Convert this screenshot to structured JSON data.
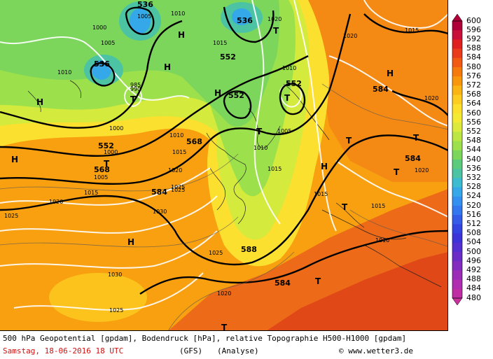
{
  "map": {
    "contour_labels_gpdam": [
      "536",
      "536",
      "536",
      "552",
      "552",
      "552",
      "552",
      "568",
      "568",
      "584",
      "584",
      "584",
      "584",
      "588"
    ],
    "pressure_labels_hpa": [
      "1005",
      "1010",
      "1000",
      "1005",
      "1010",
      "1015",
      "1020",
      "985",
      "990",
      "1000",
      "1010",
      "1015",
      "1020",
      "1005",
      "1010",
      "1000",
      "1005",
      "1015",
      "1015",
      "1020",
      "1025",
      "1030",
      "1020",
      "1030",
      "1025",
      "1025",
      "1020",
      "1015",
      "1015",
      "1010",
      "1020",
      "1025",
      "1010",
      "1015",
      "1020",
      "1025"
    ],
    "pressure_markers": [
      "H",
      "H",
      "H",
      "H",
      "H",
      "H",
      "H",
      "H",
      "T",
      "T",
      "T",
      "T",
      "T",
      "T",
      "T",
      "T",
      "T",
      "T",
      "T"
    ]
  },
  "legend": {
    "values": [
      "600",
      "596",
      "592",
      "588",
      "584",
      "580",
      "576",
      "572",
      "568",
      "564",
      "560",
      "556",
      "552",
      "548",
      "544",
      "540",
      "536",
      "532",
      "528",
      "524",
      "520",
      "516",
      "512",
      "508",
      "504",
      "500",
      "496",
      "492",
      "488",
      "484",
      "480"
    ],
    "colors": [
      "#b0003a",
      "#c8103a",
      "#e02020",
      "#e83c1c",
      "#f05a12",
      "#f47a0c",
      "#f8960c",
      "#fab414",
      "#fccc20",
      "#fce02c",
      "#f4ea34",
      "#dcea3c",
      "#bce644",
      "#9ce04c",
      "#7cd65c",
      "#5ccc7c",
      "#4cc4a4",
      "#3cbcd0",
      "#34a8e8",
      "#3490f0",
      "#3478f0",
      "#345ce8",
      "#3444e0",
      "#3c34d8",
      "#5430d0",
      "#6c2cc8",
      "#842cc0",
      "#9c2cb8",
      "#b02cb0",
      "#c02ca4",
      "#c8309c"
    ]
  },
  "footer": {
    "title": "500 hPa Geopotential [gpdam], Bodendruck [hPa], relative Topographie H500-H1000 [gpdam]",
    "date": "Samstag, 18-06-2016  18 UTC",
    "model": "(GFS)",
    "run": "(Analyse)",
    "copyright": "© www.wetter3.de"
  }
}
